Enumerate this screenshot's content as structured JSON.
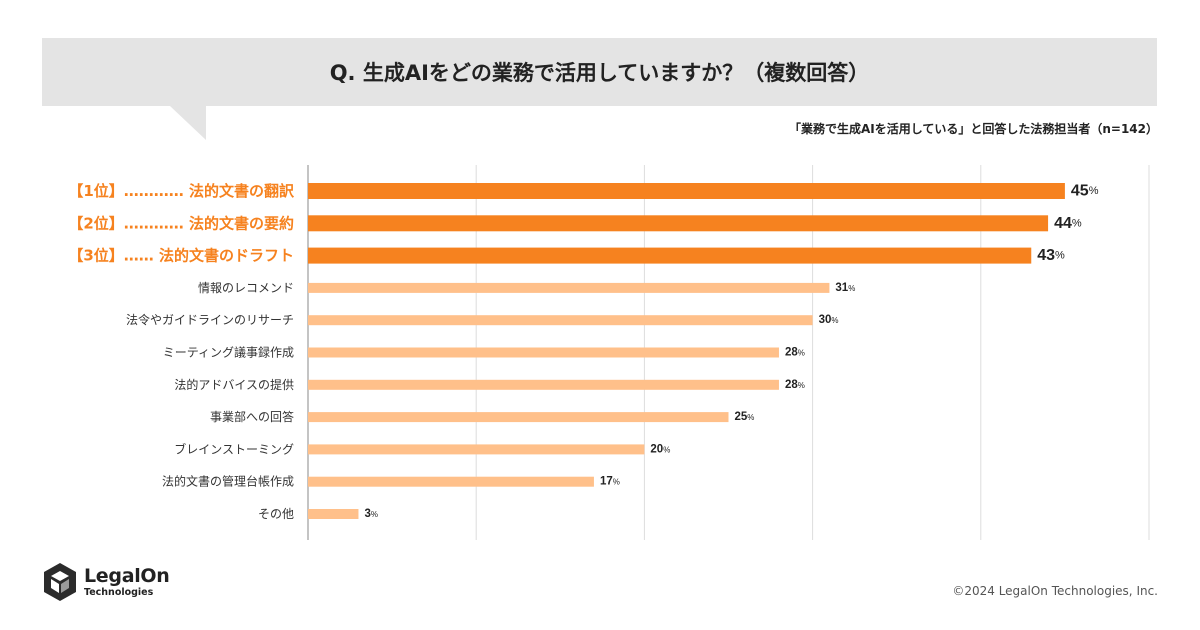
{
  "title": "Q. 生成AIをどの業務で活用していますか？（複数回答）",
  "subtitle": "「業務で生成AIを活用している」と回答した法務担当者（n=142）",
  "colors": {
    "top": "#f6821f",
    "rest": "#ffc08a",
    "accent_text": "#f6821f",
    "grid": "#dddddd"
  },
  "chart_data": {
    "type": "bar",
    "orientation": "horizontal",
    "categories": [
      "【1位】………… 法的文書の翻訳",
      "【2位】………… 法的文書の要約",
      "【3位】…… 法的文書のドラフト",
      "情報のレコメンド",
      "法令やガイドラインのリサーチ",
      "ミーティング議事録作成",
      "法的アドバイスの提供",
      "事業部への回答",
      "ブレインストーミング",
      "法的文書の管理台帳作成",
      "その他"
    ],
    "values": [
      45,
      44,
      43,
      31,
      30,
      28,
      28,
      25,
      20,
      17,
      3
    ],
    "unit": "%",
    "highlight_top": 3,
    "xlim": [
      0,
      50
    ],
    "grid": true
  },
  "footer": {
    "brand_main": "LegalOn",
    "brand_sub": "Technologies",
    "logo_icon": "hexagon-cube-icon",
    "copyright": "©2024 LegalOn Technologies, Inc."
  }
}
